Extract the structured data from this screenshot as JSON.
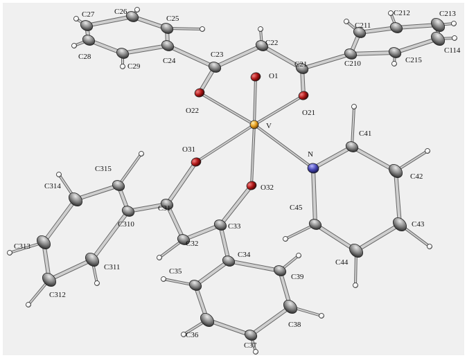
{
  "colors": {
    "background": "#f0f0f0",
    "carbon": "#8c8c8c",
    "oxygen": "#b01818",
    "nitrogen": "#4a4ab8",
    "vanadium": "#e8a020",
    "hydrogen": "#ffffff",
    "bond": "#cfcfcf",
    "bond_edge": "#666666"
  },
  "labels": {
    "V": "V",
    "O1": "O1",
    "O21": "O21",
    "O22": "O22",
    "O31": "O31",
    "O32": "O32",
    "N": "N",
    "C21": "C21",
    "C22": "C22",
    "C23": "C23",
    "C24": "C24",
    "C25": "C25",
    "C26": "C26",
    "C27": "C27",
    "C28": "C28",
    "C29": "C29",
    "C210": "C210",
    "C211": "C211",
    "C212": "C212",
    "C213": "C213",
    "C114": "C114",
    "C215": "C215",
    "C31": "C31",
    "C32": "C32",
    "C33": "C33",
    "C34": "C34",
    "C35": "C35",
    "C36": "C36",
    "C37": "C37",
    "C38": "C38",
    "C39": "C39",
    "C310": "C310",
    "C311": "C311",
    "C312": "C312",
    "C313": "C313",
    "C314": "C314",
    "C315": "C315",
    "C41": "C41",
    "C42": "C42",
    "C43": "C43",
    "C44": "C44",
    "C45": "C45"
  }
}
